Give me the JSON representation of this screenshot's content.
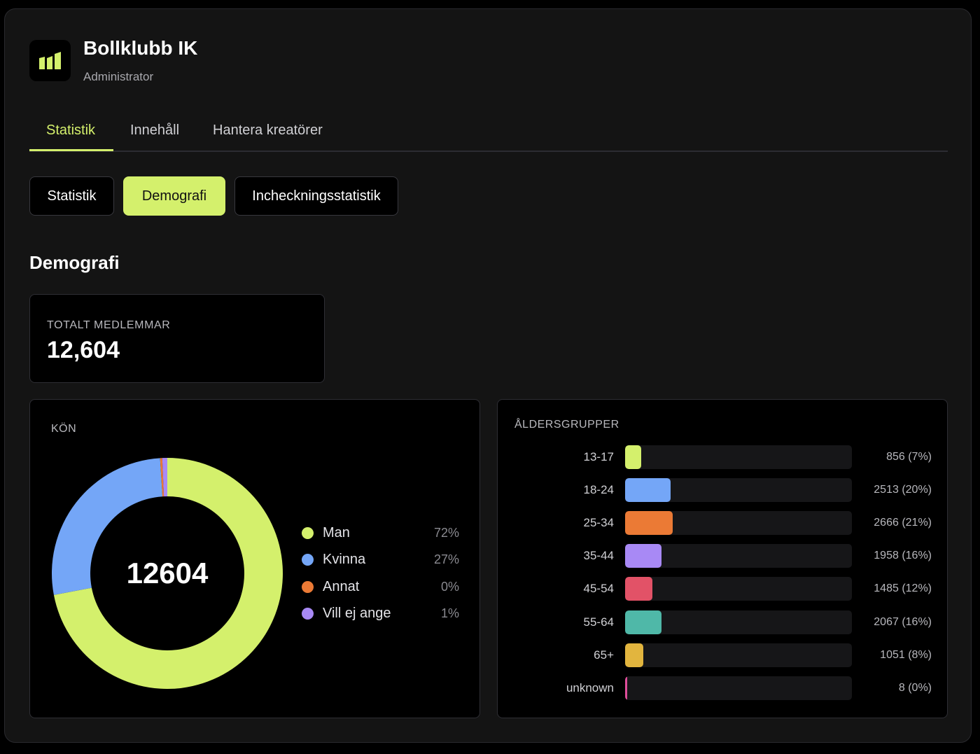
{
  "app": {
    "title": "Bollklubb IK",
    "role": "Administrator",
    "logo_icon": "bar-chart-icon",
    "accent_color": "#d4f06c"
  },
  "main_tabs": [
    {
      "label": "Statistik",
      "active": true
    },
    {
      "label": "Innehåll",
      "active": false
    },
    {
      "label": "Hantera kreatörer",
      "active": false
    }
  ],
  "sub_tabs": [
    {
      "label": "Statistik",
      "active": false
    },
    {
      "label": "Demografi",
      "active": true
    },
    {
      "label": "Incheckningsstatistik",
      "active": false
    }
  ],
  "section_title": "Demografi",
  "total_members": {
    "label": "TOTALT MEDLEMMAR",
    "value": "12,604"
  },
  "gender": {
    "label": "KÖN",
    "center_value": "12604",
    "items": [
      {
        "name": "Man",
        "pct": "72%",
        "fraction": 0.72,
        "color": "#d4f06c"
      },
      {
        "name": "Kvinna",
        "pct": "27%",
        "fraction": 0.27,
        "color": "#74a6f7"
      },
      {
        "name": "Annat",
        "pct": "0%",
        "fraction": 0.003,
        "color": "#eb7a35"
      },
      {
        "name": "Vill ej ange",
        "pct": "1%",
        "fraction": 0.007,
        "color": "#a889f5"
      }
    ]
  },
  "age_groups": {
    "label": "ÅLDERSGRUPPER",
    "items": [
      {
        "name": "13-17",
        "count": "856 (7%)",
        "fraction": 0.07,
        "color": "#d4f06c"
      },
      {
        "name": "18-24",
        "count": "2513 (20%)",
        "fraction": 0.2,
        "color": "#74a6f7"
      },
      {
        "name": "25-34",
        "count": "2666 (21%)",
        "fraction": 0.21,
        "color": "#eb7a35"
      },
      {
        "name": "35-44",
        "count": "1958 (16%)",
        "fraction": 0.16,
        "color": "#a889f5"
      },
      {
        "name": "45-54",
        "count": "1485 (12%)",
        "fraction": 0.12,
        "color": "#e25267"
      },
      {
        "name": "55-64",
        "count": "2067 (16%)",
        "fraction": 0.16,
        "color": "#4fb8a8"
      },
      {
        "name": "65+",
        "count": "1051 (8%)",
        "fraction": 0.08,
        "color": "#e2b53e"
      },
      {
        "name": "unknown",
        "count": "8 (0%)",
        "fraction": 0.004,
        "color": "#e04d9a"
      }
    ]
  }
}
